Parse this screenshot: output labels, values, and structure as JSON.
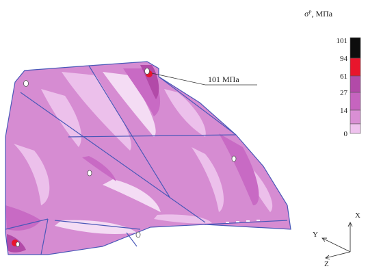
{
  "legend": {
    "title": "σᴾ, МПа",
    "ticks": [
      "101",
      "94",
      "61",
      "27",
      "14",
      "0"
    ],
    "colors": [
      "#0d0d0d",
      "#e8152c",
      "#b24aa8",
      "#c664bf",
      "#d98fd4",
      "#efc2ee"
    ]
  },
  "annotation": {
    "text": "101 МПа"
  },
  "axes": {
    "x_label": "X",
    "y_label": "Y",
    "z_label": "Z"
  },
  "colors": {
    "base": "#d68cd2",
    "light": "#ecc0eb",
    "pale": "#f4dcf4",
    "mid": "#c86ac4",
    "dark": "#b24aa8",
    "edge": "#4a58b8",
    "peak": "#e8152c"
  }
}
